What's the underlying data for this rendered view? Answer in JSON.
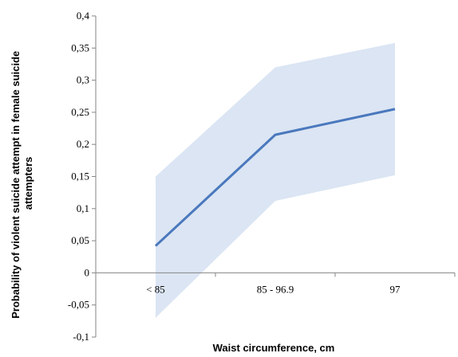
{
  "chart_data": {
    "type": "line",
    "xlabel": "Waist circumference, cm",
    "ylabel": "Probability of violent suicide attempt in female suicide attempters",
    "ylabel_lines": [
      "Probability of violent suicide attempt in female suicide",
      "attempters"
    ],
    "categories": [
      "< 85",
      "85 - 96.9",
      "97"
    ],
    "series": [
      {
        "values": [
          0.042,
          0.215,
          0.255
        ],
        "upper": [
          0.15,
          0.32,
          0.358
        ],
        "lower": [
          -0.07,
          0.112,
          0.152
        ],
        "color": "#4a78bd",
        "band_color": "#dbe5f3"
      }
    ],
    "ylim": [
      -0.1,
      0.4
    ],
    "yticks": [
      -0.1,
      -0.05,
      0,
      0.05,
      0.1,
      0.15,
      0.2,
      0.25,
      0.3,
      0.35,
      0.4
    ],
    "ytick_labels": [
      "-0,1",
      "-0,05",
      "0",
      "0,05",
      "0,1",
      "0,15",
      "0,2",
      "0,25",
      "0,3",
      "0,35",
      "0,4"
    ],
    "grid": false,
    "legend": "none"
  }
}
